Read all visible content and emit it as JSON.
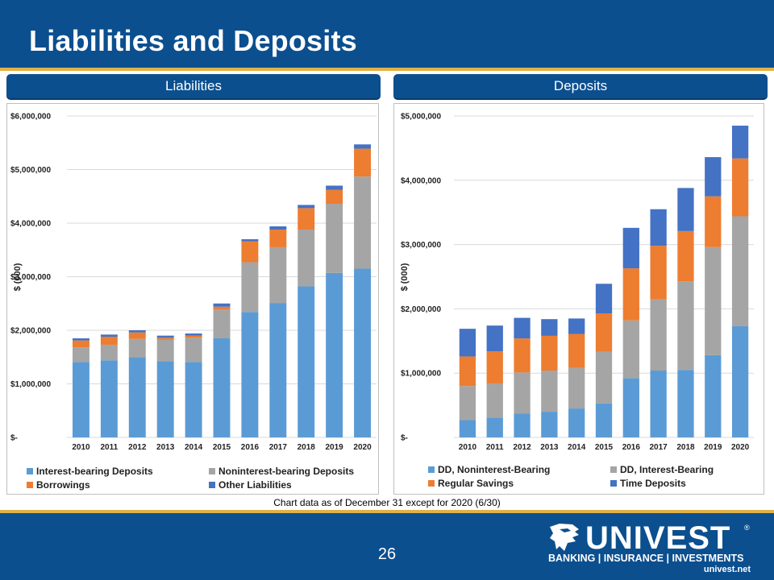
{
  "header": {
    "title": "Liabilities and Deposits"
  },
  "colors": {
    "blue": "#5b9bd5",
    "gray": "#a5a5a5",
    "orange": "#ed7d31",
    "darkblue": "#4472c4",
    "brand": "#0b4f8f",
    "gold": "#e0b24a"
  },
  "chart_data": [
    {
      "panel_label": "Liabilities",
      "type": "bar",
      "stacked": true,
      "ylabel": "$ (000)",
      "ylim": [
        0,
        6000000
      ],
      "yticks": [
        0,
        1000000,
        2000000,
        3000000,
        4000000,
        5000000,
        6000000
      ],
      "ytick_labels": [
        "$-",
        "$1,000,000",
        "$2,000,000",
        "$3,000,000",
        "$4,000,000",
        "$5,000,000",
        "$6,000,000"
      ],
      "categories": [
        "2010",
        "2011",
        "2012",
        "2013",
        "2014",
        "2015",
        "2016",
        "2017",
        "2018",
        "2019",
        "2020"
      ],
      "series": [
        {
          "name": "Interest-bearing Deposits",
          "color": "#5b9bd5",
          "values": [
            1410000,
            1440000,
            1500000,
            1420000,
            1410000,
            1850000,
            2340000,
            2510000,
            2820000,
            3070000,
            3150000
          ]
        },
        {
          "name": "Noninterest-bearing Deposits",
          "color": "#a5a5a5",
          "values": [
            270000,
            290000,
            340000,
            400000,
            450000,
            530000,
            930000,
            1040000,
            1060000,
            1290000,
            1720000
          ]
        },
        {
          "name": "Borrowings",
          "color": "#ed7d31",
          "values": [
            130000,
            150000,
            120000,
            40000,
            40000,
            60000,
            390000,
            330000,
            400000,
            260000,
            520000
          ]
        },
        {
          "name": "Other Liabilities",
          "color": "#4472c4",
          "values": [
            40000,
            40000,
            40000,
            40000,
            40000,
            60000,
            40000,
            60000,
            60000,
            80000,
            80000
          ]
        }
      ],
      "legend": {
        "position": "bottom"
      }
    },
    {
      "panel_label": "Deposits",
      "type": "bar",
      "stacked": true,
      "ylabel": "$ (000)",
      "ylim": [
        0,
        5000000
      ],
      "yticks": [
        0,
        1000000,
        2000000,
        3000000,
        4000000,
        5000000
      ],
      "ytick_labels": [
        "$-",
        "$1,000,000",
        "$2,000,000",
        "$3,000,000",
        "$4,000,000",
        "$5,000,000"
      ],
      "categories": [
        "2010",
        "2011",
        "2012",
        "2013",
        "2014",
        "2015",
        "2016",
        "2017",
        "2018",
        "2019",
        "2020"
      ],
      "series": [
        {
          "name": "DD, Noninterest-Bearing",
          "color": "#5b9bd5",
          "values": [
            270000,
            310000,
            370000,
            400000,
            450000,
            530000,
            920000,
            1040000,
            1050000,
            1280000,
            1730000
          ]
        },
        {
          "name": "DD, Interest-Bearing",
          "color": "#a5a5a5",
          "values": [
            530000,
            530000,
            640000,
            640000,
            630000,
            800000,
            900000,
            1110000,
            1380000,
            1680000,
            1710000
          ]
        },
        {
          "name": "Regular Savings",
          "color": "#ed7d31",
          "values": [
            460000,
            500000,
            530000,
            540000,
            530000,
            600000,
            810000,
            830000,
            780000,
            790000,
            900000
          ]
        },
        {
          "name": "Time Deposits",
          "color": "#4472c4",
          "values": [
            430000,
            400000,
            320000,
            260000,
            240000,
            460000,
            630000,
            570000,
            670000,
            610000,
            510000
          ]
        }
      ],
      "legend": {
        "position": "bottom"
      }
    }
  ],
  "footnote": "Chart data as of December 31 except for 2020 (6/30)",
  "footer": {
    "page_number": "26",
    "logo_word": "UNIVEST",
    "logo_reg": "®",
    "logo_tagline": "BANKING | INSURANCE | INVESTMENTS",
    "logo_url": "univest.net"
  }
}
